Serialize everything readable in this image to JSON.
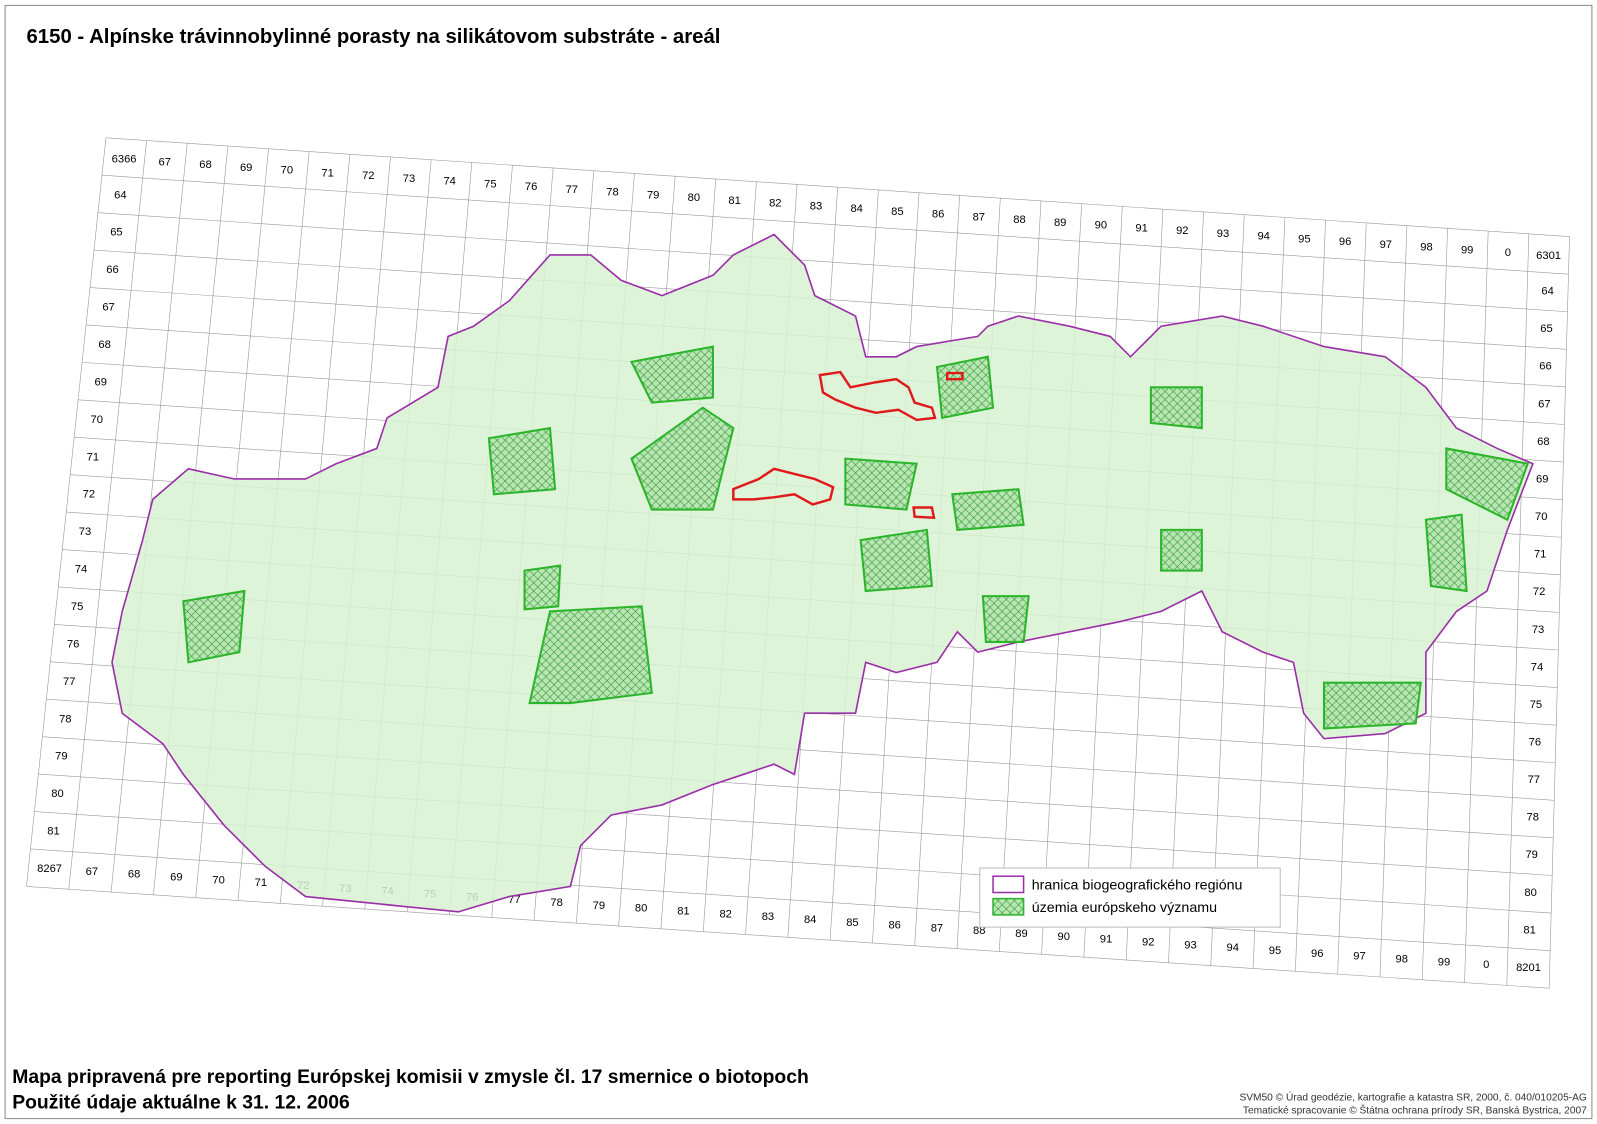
{
  "title": "6150 - Alpínske trávinnobylinné porasty na silikátovom substráte - areál",
  "grid": {
    "top": [
      "6366",
      "67",
      "68",
      "69",
      "70",
      "71",
      "72",
      "73",
      "74",
      "75",
      "76",
      "77",
      "78",
      "79",
      "80",
      "81",
      "82",
      "83",
      "84",
      "85",
      "86",
      "87",
      "88",
      "89",
      "90",
      "91",
      "92",
      "93",
      "94",
      "95",
      "96",
      "97",
      "98",
      "99",
      "0",
      "6301"
    ],
    "bottom": [
      "8267",
      "67",
      "68",
      "69",
      "70",
      "71",
      "72",
      "73",
      "74",
      "75",
      "76",
      "77",
      "78",
      "79",
      "80",
      "81",
      "82",
      "83",
      "84",
      "85",
      "86",
      "87",
      "88",
      "89",
      "90",
      "91",
      "92",
      "93",
      "94",
      "95",
      "96",
      "97",
      "98",
      "99",
      "0",
      "8201"
    ],
    "left": [
      "64",
      "65",
      "66",
      "67",
      "68",
      "69",
      "70",
      "71",
      "72",
      "73",
      "74",
      "75",
      "76",
      "77",
      "78",
      "79",
      "80",
      "81"
    ],
    "right": [
      "64",
      "65",
      "66",
      "67",
      "68",
      "69",
      "70",
      "71",
      "72",
      "73",
      "74",
      "75",
      "76",
      "77",
      "78",
      "79",
      "80",
      "81"
    ]
  },
  "legend": [
    "hranica biogeografického regiónu",
    "územia európskeho významu"
  ],
  "footer": [
    "Mapa pripravená pre reporting Európskej komisii v zmysle čl. 17 smernice o biotopoch",
    "Použité údaje aktuálne k 31. 12. 2006"
  ],
  "credits": [
    "SVM50 © Úrad geodézie, kartografie a katastra SR, 2000, č. 040/010205-AG",
    "Tematické spracovanie © Štátna ochrana prírody SR, Banská Bystrica, 2007"
  ]
}
